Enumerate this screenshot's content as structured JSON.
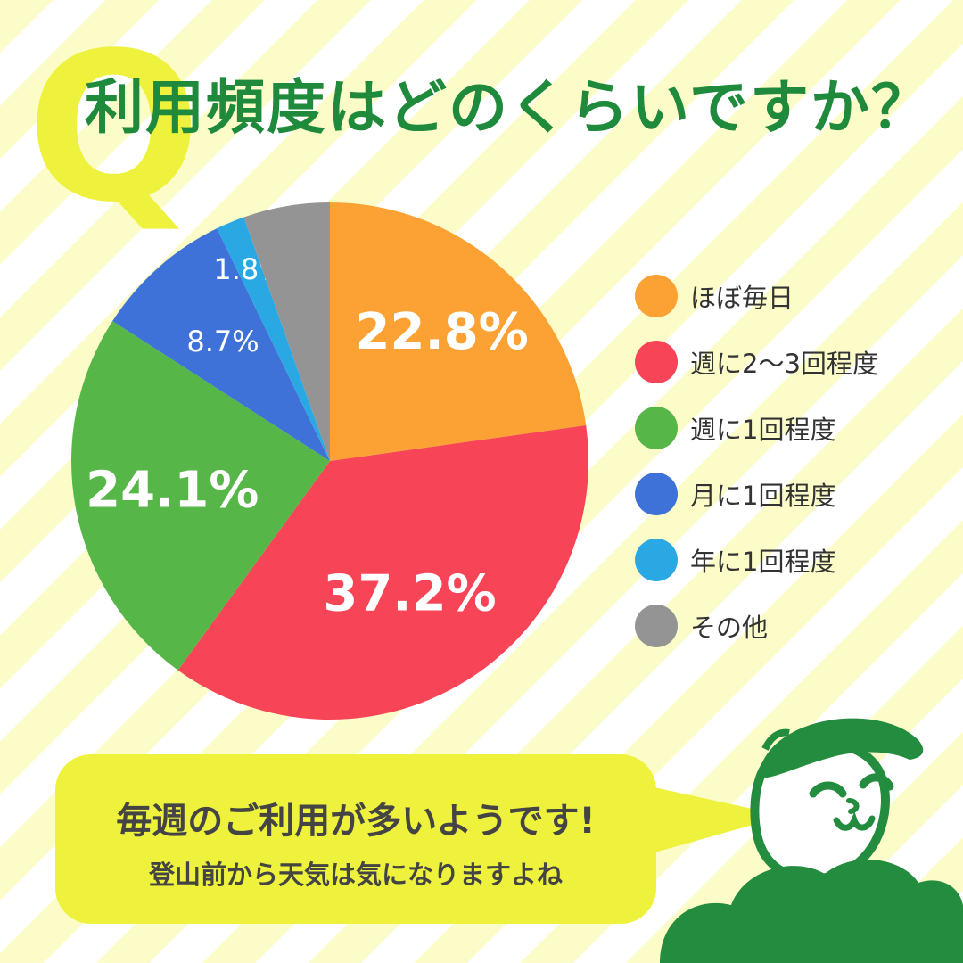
{
  "header": {
    "q_mark": "Q",
    "title": "利用頻度はどのくらいですか？"
  },
  "chart_data": {
    "type": "pie",
    "title": "利用頻度はどのくらいですか？",
    "slices": [
      {
        "label": "ほぼ毎日",
        "value": 22.8,
        "display": "22.8%",
        "color": "#fca134"
      },
      {
        "label": "週に2〜3回程度",
        "value": 37.2,
        "display": "37.2%",
        "color": "#f74456"
      },
      {
        "label": "週に1回程度",
        "value": 24.1,
        "display": "24.1%",
        "color": "#56b748"
      },
      {
        "label": "月に1回程度",
        "value": 8.7,
        "display": "8.7%",
        "color": "#3f72d8"
      },
      {
        "label": "年に1回程度",
        "value": 1.8,
        "display": "1.8%",
        "color": "#2aa8e4"
      },
      {
        "label": "その他",
        "value": 5.4,
        "display": "",
        "color": "#949494"
      }
    ],
    "legend_position": "right"
  },
  "bubble": {
    "line1": "毎週のご利用が多いようです!",
    "line2": "登山前から天気は気になりますよね"
  },
  "colors": {
    "title_green": "#1f8a3b",
    "q_yellow": "#eef23c",
    "bubble_yellow": "#eef23c",
    "mascot_green": "#238c3e"
  }
}
